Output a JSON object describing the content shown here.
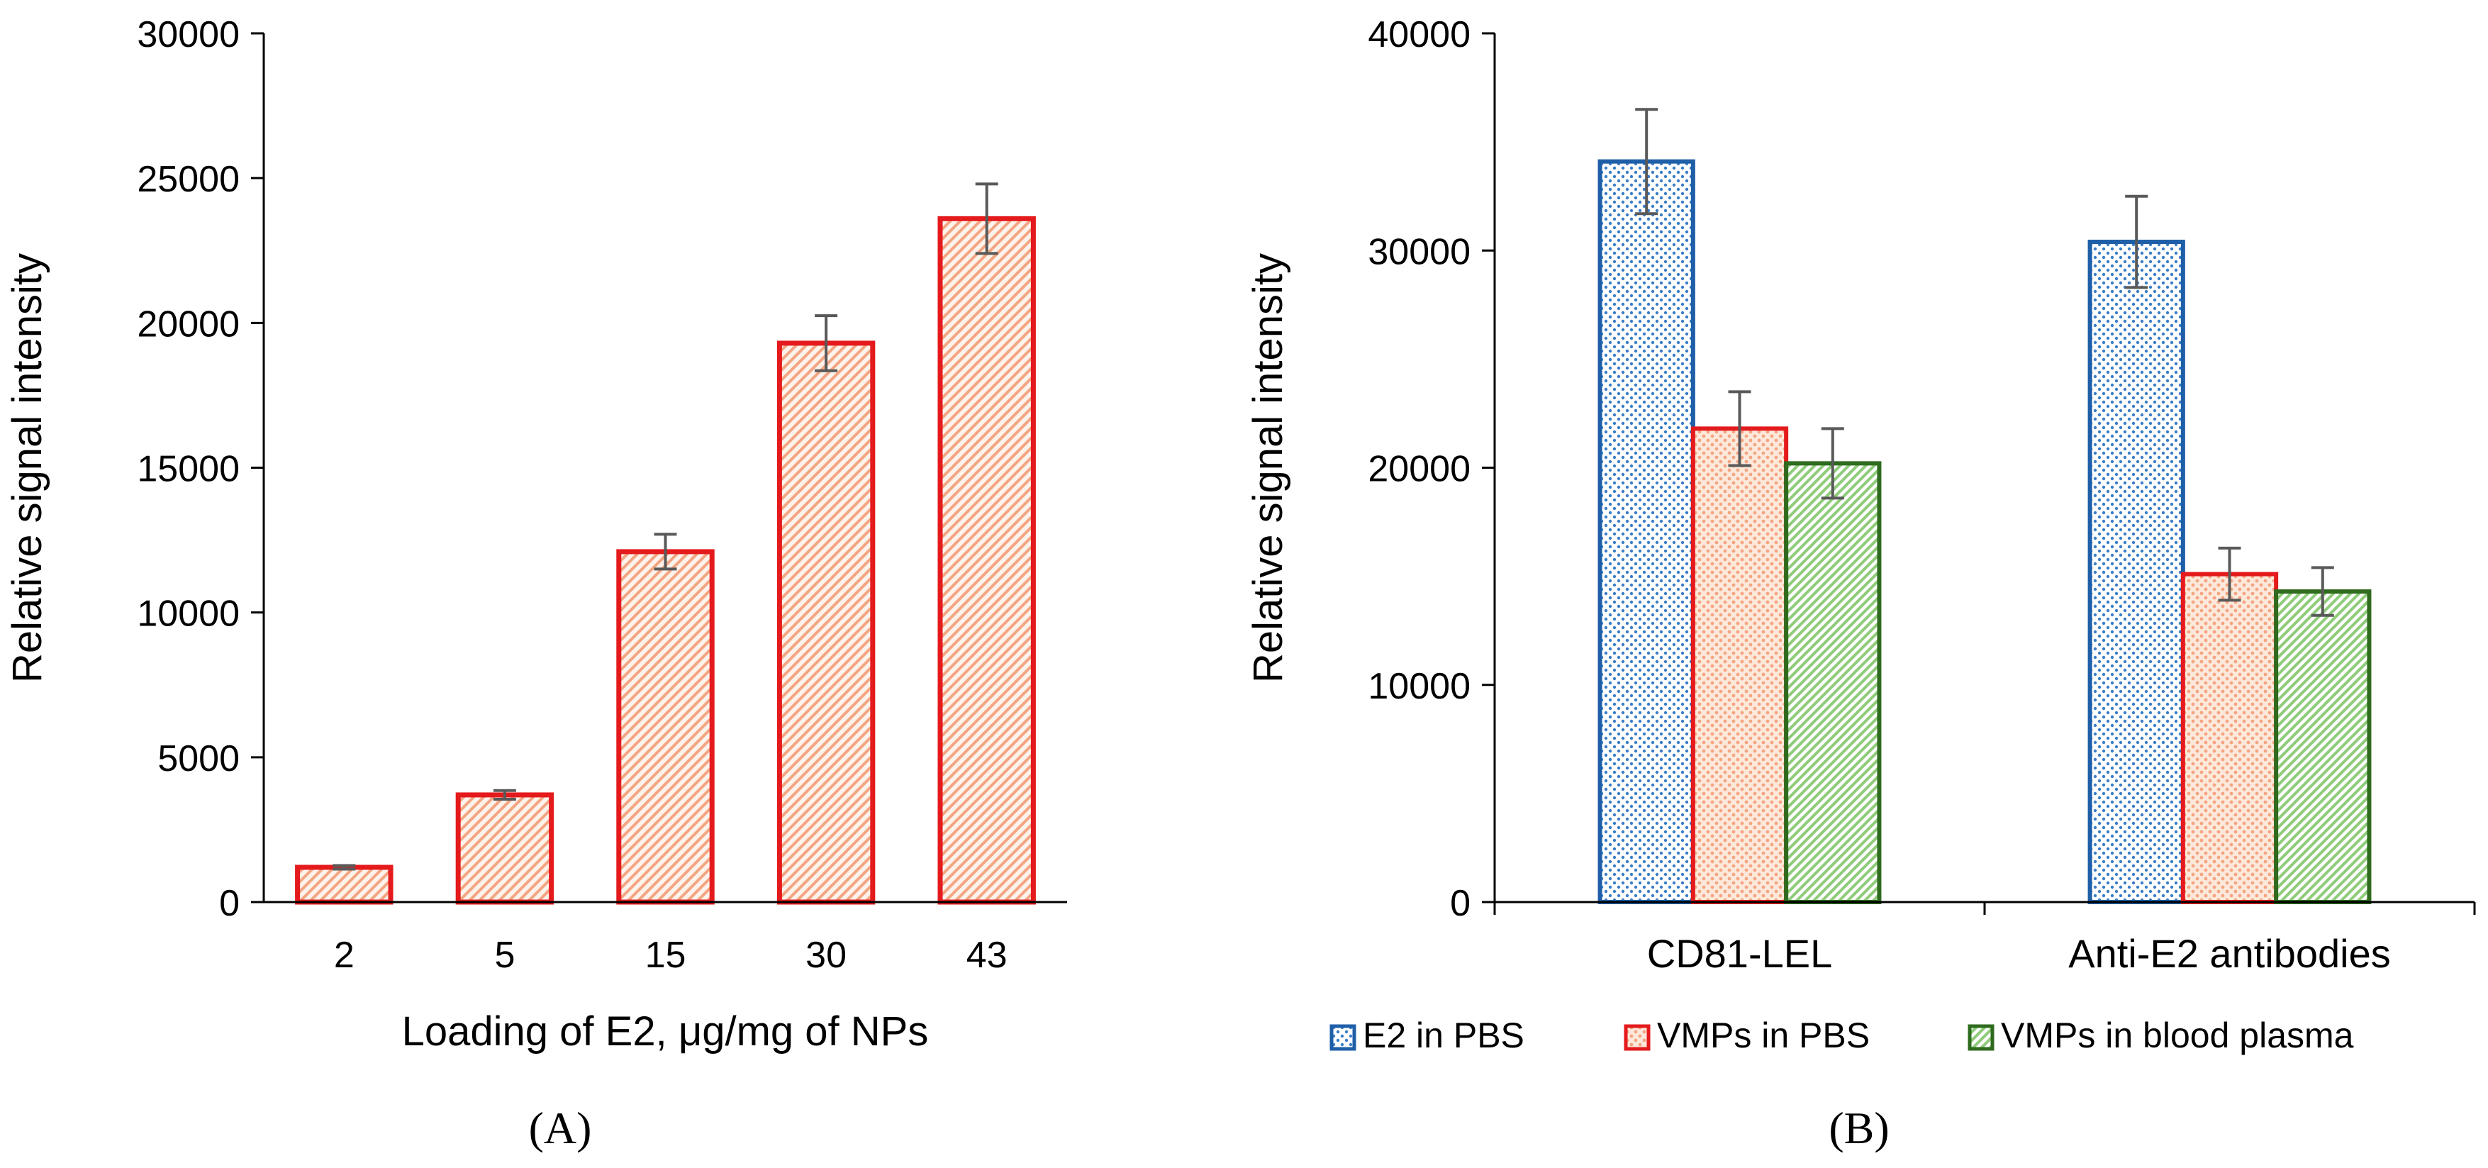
{
  "colors": {
    "bar_red": "#e41a1c",
    "bar_blue": "#1f5fa8",
    "bar_green": "#2e6b1e",
    "fill_orange": "#f4a582",
    "fill_blue_dot": "#3a7dc8",
    "fill_green": "#8fcc7a",
    "error_bar": "#595959",
    "axis": "#000000"
  },
  "chart_data": [
    {
      "type": "bar",
      "panel_label": "(A)",
      "categories": [
        "2",
        "5",
        "15",
        "30",
        "43"
      ],
      "values": [
        1200,
        3700,
        12100,
        19300,
        23600
      ],
      "errors": [
        60,
        150,
        600,
        950,
        1200
      ],
      "xlabel": "Loading of E2, μg/mg of NPs",
      "ylabel": "Relative signal intensity",
      "ylim": [
        0,
        30000
      ],
      "yticks": [
        "0",
        "5000",
        "10000",
        "15000",
        "20000",
        "25000",
        "30000"
      ],
      "grid": false,
      "legend": false
    },
    {
      "type": "bar",
      "panel_label": "(B)",
      "categories": [
        "CD81-LEL",
        "Anti-E2 antibodies"
      ],
      "series": [
        {
          "name": "E2 in PBS",
          "values": [
            34100,
            30400
          ],
          "errors": [
            2400,
            2100
          ],
          "color": "#1f5fa8",
          "pattern": "dots-blue"
        },
        {
          "name": "VMPs in PBS",
          "values": [
            21800,
            15100
          ],
          "errors": [
            1700,
            1200
          ],
          "color": "#e41a1c",
          "pattern": "dots-orange"
        },
        {
          "name": "VMPs in blood plasma",
          "values": [
            20200,
            14300
          ],
          "errors": [
            1600,
            1100
          ],
          "color": "#2e6b1e",
          "pattern": "hatch-green"
        }
      ],
      "ylabel": "Relative signal intensity",
      "ylim": [
        0,
        40000
      ],
      "yticks": [
        "0",
        "10000",
        "20000",
        "30000",
        "40000"
      ],
      "grid": false,
      "legend_position": "bottom"
    }
  ]
}
